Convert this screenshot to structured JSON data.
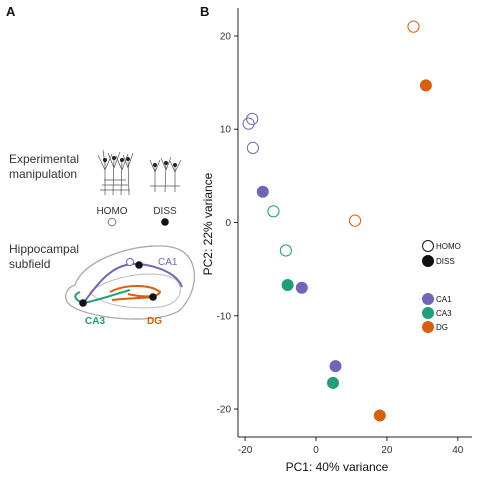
{
  "panel_a": {
    "letter": "A",
    "manipulation_label": [
      "Experimental",
      "manipulation"
    ],
    "homo_label": "HOMO",
    "diss_label": "DISS",
    "subfield_label": [
      "Hippocampal",
      "subfield"
    ],
    "ca1_label": "CA1",
    "ca3_label": "CA3",
    "dg_label": "DG"
  },
  "colors": {
    "CA1": "#7066b8",
    "CA3": "#1f9e77",
    "DG": "#d95f0e"
  },
  "chart_data": {
    "type": "scatter",
    "panel_letter": "B",
    "xlabel": "PC1: 40% variance",
    "ylabel": "PC2: 22% variance",
    "xlim": [
      -22,
      44
    ],
    "ylim": [
      -23,
      23
    ],
    "xticks": [
      -20,
      0,
      20,
      40
    ],
    "yticks": [
      -20,
      -10,
      0,
      10,
      20
    ],
    "grid": false,
    "legend_position": "right",
    "legend_condition": [
      {
        "label": "HOMO",
        "filled": false
      },
      {
        "label": "DISS",
        "filled": true
      }
    ],
    "legend_subfield": [
      {
        "label": "CA1",
        "color": "#7066b8"
      },
      {
        "label": "CA3",
        "color": "#1f9e77"
      },
      {
        "label": "DG",
        "color": "#d95f0e"
      }
    ],
    "points": [
      {
        "x": -19,
        "y": 10.6,
        "subfield": "CA1",
        "condition": "HOMO"
      },
      {
        "x": -18,
        "y": 11.1,
        "subfield": "CA1",
        "condition": "HOMO"
      },
      {
        "x": -17.8,
        "y": 8.0,
        "subfield": "CA1",
        "condition": "HOMO"
      },
      {
        "x": -15,
        "y": 3.3,
        "subfield": "CA1",
        "condition": "DISS"
      },
      {
        "x": 5.5,
        "y": -15.4,
        "subfield": "CA1",
        "condition": "DISS"
      },
      {
        "x": -4,
        "y": -7.0,
        "subfield": "CA1",
        "condition": "DISS"
      },
      {
        "x": -12,
        "y": 1.2,
        "subfield": "CA3",
        "condition": "HOMO"
      },
      {
        "x": -8.5,
        "y": -3.0,
        "subfield": "CA3",
        "condition": "HOMO"
      },
      {
        "x": -8,
        "y": -6.7,
        "subfield": "CA3",
        "condition": "DISS"
      },
      {
        "x": 4.8,
        "y": -17.2,
        "subfield": "CA3",
        "condition": "DISS"
      },
      {
        "x": 11,
        "y": 0.2,
        "subfield": "DG",
        "condition": "HOMO"
      },
      {
        "x": 27.5,
        "y": 21.0,
        "subfield": "DG",
        "condition": "HOMO"
      },
      {
        "x": 31,
        "y": 14.7,
        "subfield": "DG",
        "condition": "DISS"
      },
      {
        "x": 18,
        "y": -20.7,
        "subfield": "DG",
        "condition": "DISS"
      }
    ]
  }
}
